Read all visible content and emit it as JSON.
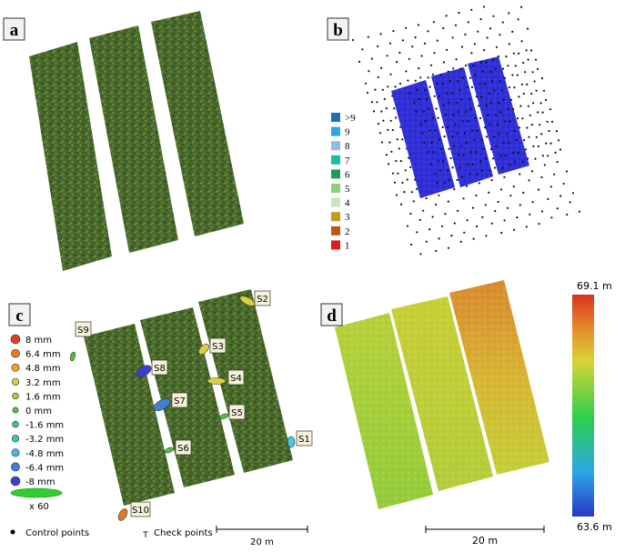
{
  "panels": {
    "a": {
      "letter": "a"
    },
    "b": {
      "letter": "b",
      "legend": [
        {
          "label": ">9",
          "color": "#1f6fb5"
        },
        {
          "label": "9",
          "color": "#2aa7e8"
        },
        {
          "label": "8",
          "color": "#8fbce3"
        },
        {
          "label": "7",
          "color": "#1abf9c"
        },
        {
          "label": "6",
          "color": "#1a9e52"
        },
        {
          "label": "5",
          "color": "#8fcf7a"
        },
        {
          "label": "4",
          "color": "#cfe3bd"
        },
        {
          "label": "3",
          "color": "#c79a14"
        },
        {
          "label": "2",
          "color": "#b8591a"
        },
        {
          "label": "1",
          "color": "#e01b1b"
        }
      ]
    },
    "c": {
      "letter": "c",
      "legend": [
        {
          "label": "8 mm",
          "color": "#d9431e"
        },
        {
          "label": "6.4 mm",
          "color": "#e0782a"
        },
        {
          "label": "4.8 mm",
          "color": "#e6a233"
        },
        {
          "label": "3.2 mm",
          "color": "#d8d23a"
        },
        {
          "label": "1.6 mm",
          "color": "#a3cf3a"
        },
        {
          "label": "0 mm",
          "color": "#55c33a"
        },
        {
          "label": "-1.6 mm",
          "color": "#3cc48a"
        },
        {
          "label": "-3.2 mm",
          "color": "#3dc7b9"
        },
        {
          "label": "-4.8 mm",
          "color": "#49b6e3"
        },
        {
          "label": "-6.4 mm",
          "color": "#3f7fd6"
        },
        {
          "label": "-8 mm",
          "color": "#3a3fcf"
        }
      ],
      "scale_label": "x 60",
      "points": [
        {
          "label": "S1",
          "color": "#49c6e3"
        },
        {
          "label": "S2",
          "color": "#d8d23a"
        },
        {
          "label": "S3",
          "color": "#d8d23a"
        },
        {
          "label": "S4",
          "color": "#d8d23a"
        },
        {
          "label": "S5",
          "color": "#55c33a"
        },
        {
          "label": "S6",
          "color": "#55c33a"
        },
        {
          "label": "S7",
          "color": "#3f7fd6"
        },
        {
          "label": "S8",
          "color": "#3a3fcf"
        },
        {
          "label": "S9",
          "color": "#55c33a"
        },
        {
          "label": "S10",
          "color": "#e0782a"
        }
      ],
      "control_points_label": "Control points",
      "check_points_label": "Check points",
      "check_symbol": "T",
      "scalebar_label": "20 m"
    },
    "d": {
      "letter": "d",
      "colorbar_max": "69.1 m",
      "colorbar_min": "63.6 m",
      "scalebar_label": "20 m"
    }
  }
}
